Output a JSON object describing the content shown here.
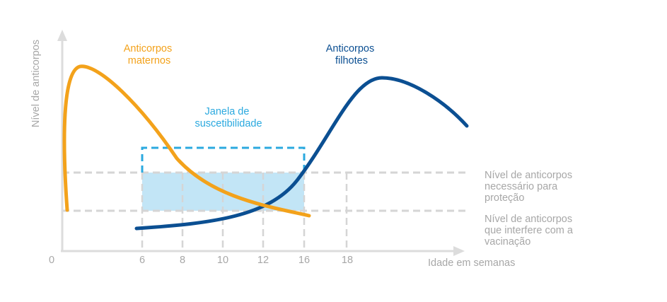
{
  "colors": {
    "maternal": "#f3a21b",
    "offspring": "#0b4f92",
    "window": "#2ba9df",
    "window_fill": "#c2e5f6",
    "axis": "#dcdcdc",
    "grid": "#d5d5d5",
    "text": "#a7a7a7"
  },
  "axes": {
    "y_label": "Nível de anticorpos",
    "x_label": "Idade em semanas",
    "origin_label": "0",
    "x_ticks": [
      "6",
      "8",
      "10",
      "12",
      "16",
      "18"
    ]
  },
  "curves": {
    "maternal_label": [
      "Anticorpos",
      "maternos"
    ],
    "offspring_label": [
      "Anticorpos",
      "filhotes"
    ]
  },
  "window": {
    "label": [
      "Janela de",
      "suscetibilidade"
    ]
  },
  "levels": {
    "protection": [
      "Nível de anticorpos",
      "necessário para",
      "proteção"
    ],
    "interference": [
      "Nível de anticorpos",
      "que interfere com a",
      "vacinação"
    ]
  }
}
